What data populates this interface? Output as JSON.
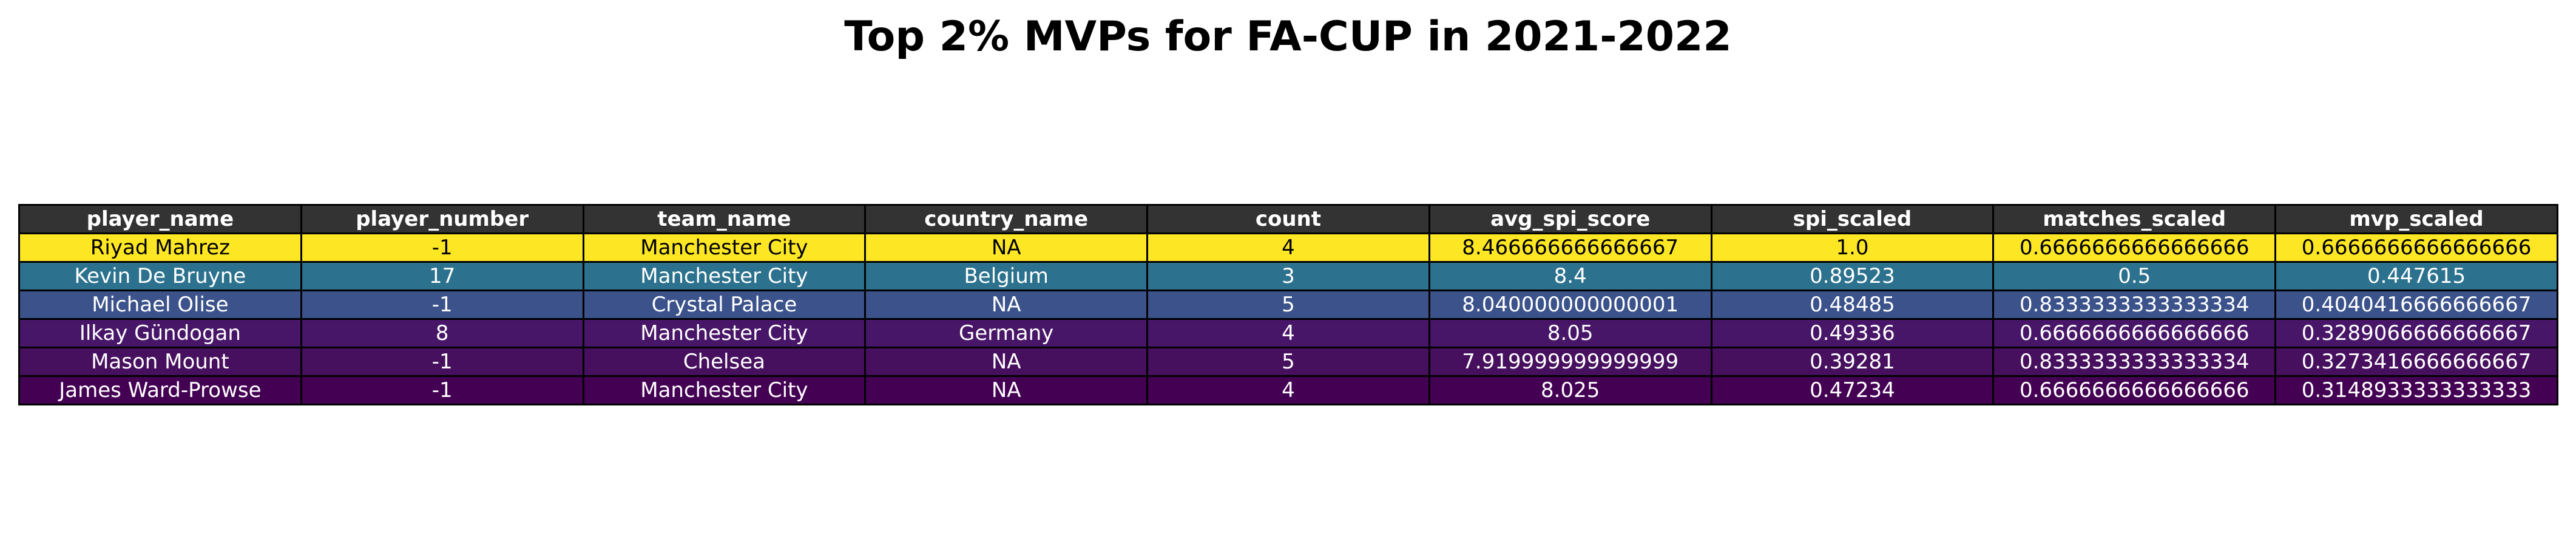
{
  "chart_data": {
    "type": "table",
    "title": "Top 2% MVPs for FA-CUP in 2021-2022",
    "columns": [
      "player_name",
      "player_number",
      "team_name",
      "country_name",
      "count",
      "avg_spi_score",
      "spi_scaled",
      "matches_scaled",
      "mvp_scaled"
    ],
    "rows": [
      {
        "cells": [
          "Riyad Mahrez",
          "-1",
          "Manchester City",
          "NA",
          "4",
          "8.466666666666667",
          "1.0",
          "0.6666666666666666",
          "0.6666666666666666"
        ],
        "bg": "#fde725",
        "fg": "#000000"
      },
      {
        "cells": [
          "Kevin De Bruyne",
          "17",
          "Manchester City",
          "Belgium",
          "3",
          "8.4",
          "0.89523",
          "0.5",
          "0.447615"
        ],
        "bg": "#2c728e",
        "fg": "#ffffff"
      },
      {
        "cells": [
          "Michael Olise",
          "-1",
          "Crystal Palace",
          "NA",
          "5",
          "8.040000000000001",
          "0.48485",
          "0.8333333333333334",
          "0.4040416666666667"
        ],
        "bg": "#3b528b",
        "fg": "#ffffff"
      },
      {
        "cells": [
          "Ilkay Gündogan",
          "8",
          "Manchester City",
          "Germany",
          "4",
          "8.05",
          "0.49336",
          "0.6666666666666666",
          "0.3289066666666667"
        ],
        "bg": "#481668",
        "fg": "#ffffff"
      },
      {
        "cells": [
          "Mason Mount",
          "-1",
          "Chelsea",
          "NA",
          "5",
          "7.919999999999999",
          "0.39281",
          "0.8333333333333334",
          "0.3273416666666667"
        ],
        "bg": "#46105e",
        "fg": "#ffffff"
      },
      {
        "cells": [
          "James Ward-Prowse",
          "-1",
          "Manchester City",
          "NA",
          "4",
          "8.025",
          "0.47234",
          "0.6666666666666666",
          "0.3148933333333333"
        ],
        "bg": "#440154",
        "fg": "#ffffff"
      }
    ]
  }
}
